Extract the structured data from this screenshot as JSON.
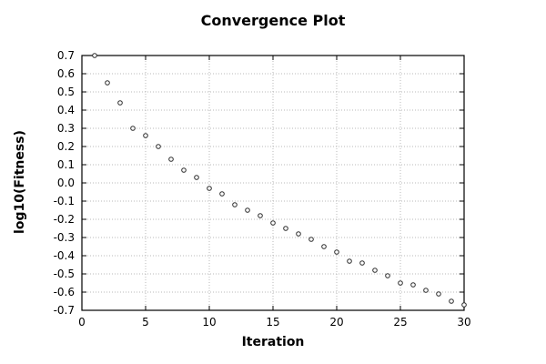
{
  "chart_data": {
    "type": "scatter",
    "title": "Convergence Plot",
    "xlabel": "Iteration",
    "ylabel": "log10(Fitness)",
    "xlim": [
      0,
      30
    ],
    "ylim": [
      -0.7,
      0.7
    ],
    "xticks": [
      0,
      5,
      10,
      15,
      20,
      25,
      30
    ],
    "xtick_labels": [
      "0",
      "5",
      "10",
      "15",
      "20",
      "25",
      "30"
    ],
    "yticks": [
      0.7,
      0.6,
      0.5,
      0.4,
      0.3,
      0.2,
      0.1,
      0.0,
      -0.1,
      -0.2,
      -0.3,
      -0.4,
      -0.5,
      -0.6,
      -0.7
    ],
    "ytick_labels": [
      "0.7",
      "0.6",
      "0.5",
      "0.4",
      "0.3",
      "0.2",
      "0.1",
      "0.0",
      "-0.1",
      "-0.2",
      "-0.3",
      "-0.4",
      "-0.5",
      "-0.6",
      "-0.7"
    ],
    "grid": "dotted",
    "legend": "none",
    "marker": "open-circle",
    "series": [
      {
        "name": "log10(Fitness)",
        "x": [
          1,
          2,
          3,
          4,
          5,
          6,
          7,
          8,
          9,
          10,
          11,
          12,
          13,
          14,
          15,
          16,
          17,
          18,
          19,
          20,
          21,
          22,
          23,
          24,
          25,
          26,
          27,
          28,
          29,
          30
        ],
        "y": [
          0.7,
          0.55,
          0.44,
          0.3,
          0.26,
          0.2,
          0.13,
          0.07,
          0.03,
          -0.03,
          -0.06,
          -0.12,
          -0.15,
          -0.18,
          -0.22,
          -0.25,
          -0.28,
          -0.31,
          -0.35,
          -0.38,
          -0.43,
          -0.44,
          -0.48,
          -0.51,
          -0.55,
          -0.56,
          -0.59,
          -0.61,
          -0.65,
          -0.67
        ]
      }
    ],
    "colors": {
      "background": "#ffffff",
      "axis": "#000000",
      "grid": "#b9b9b9",
      "marker": "#2b2b2b",
      "marker_fill": "#ffffff",
      "text": "#000000"
    }
  }
}
